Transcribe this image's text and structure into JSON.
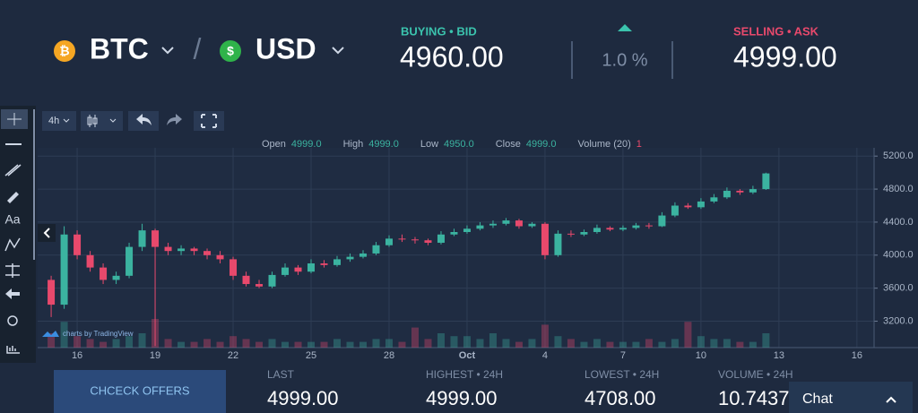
{
  "header": {
    "base_symbol": "₿",
    "base": "BTC",
    "quote_symbol": "$",
    "quote": "USD",
    "separator": "/",
    "bid_label": "BUYING • BID",
    "bid": "4960.00",
    "change": "1.0 %",
    "ask_label": "SELLING • ASK",
    "ask": "4999.00"
  },
  "left_toolbar": {
    "text_tool": "Aa"
  },
  "chart_toolbar": {
    "interval": "4h"
  },
  "ohlc_legend": {
    "open_label": "Open",
    "open": "4999.0",
    "high_label": "High",
    "high": "4999.0",
    "low_label": "Low",
    "low": "4950.0",
    "close_label": "Close",
    "close": "4999.0",
    "volume_label": "Volume (20)",
    "volume": "1"
  },
  "chart_data": {
    "type": "candlestick",
    "watermark": "charts by TradingView",
    "up_color": "#3bb3a0",
    "down_color": "#e8496c",
    "grid": true,
    "x": [
      -1,
      -0.5,
      0,
      0.5,
      1,
      1.5,
      2,
      2.5,
      3,
      3.5,
      4,
      4.5,
      5,
      5.5,
      6,
      6.5,
      7,
      7.5,
      8,
      8.5,
      9,
      9.5,
      10,
      10.5,
      11,
      11.5,
      12,
      12.5,
      13,
      13.5,
      14,
      14.5,
      15,
      15.5,
      16,
      16.5,
      17,
      17.5,
      18,
      18.5,
      19,
      19.5,
      20,
      20.5,
      21,
      21.5,
      22,
      22.5,
      23,
      23.5,
      24,
      24.5,
      25,
      25.5,
      26,
      26.5
    ],
    "open": [
      3700,
      3400,
      4250,
      4000,
      3850,
      3700,
      3750,
      4100,
      4300,
      4100,
      4050,
      4080,
      4050,
      4000,
      3950,
      3750,
      3650,
      3620,
      3760,
      3850,
      3800,
      3900,
      3880,
      3950,
      3980,
      4020,
      4120,
      4200,
      4190,
      4180,
      4150,
      4250,
      4280,
      4320,
      4360,
      4380,
      4420,
      4350,
      4380,
      4000,
      4260,
      4250,
      4280,
      4330,
      4310,
      4330,
      4360,
      4350,
      4480,
      4600,
      4580,
      4650,
      4700,
      4780,
      4760,
      4800
    ],
    "high": [
      3750,
      4350,
      4300,
      4050,
      3900,
      3800,
      4150,
      4380,
      4320,
      4150,
      4120,
      4100,
      4080,
      4050,
      3980,
      3800,
      3700,
      3800,
      3900,
      3880,
      3950,
      3940,
      3990,
      4020,
      4060,
      4160,
      4240,
      4250,
      4220,
      4200,
      4290,
      4320,
      4360,
      4400,
      4420,
      4450,
      4440,
      4400,
      4400,
      4300,
      4300,
      4310,
      4370,
      4350,
      4360,
      4390,
      4390,
      4520,
      4640,
      4630,
      4690,
      4740,
      4820,
      4800,
      4840,
      4999
    ],
    "low": [
      3250,
      3350,
      3950,
      3800,
      3650,
      3650,
      3720,
      4050,
      2900,
      4000,
      4000,
      4000,
      3950,
      3900,
      3700,
      3620,
      3600,
      3600,
      3740,
      3760,
      3780,
      3850,
      3860,
      3920,
      3960,
      4000,
      4100,
      4160,
      4140,
      4120,
      4130,
      4230,
      4260,
      4300,
      4330,
      4360,
      4320,
      4330,
      3950,
      3980,
      4220,
      4230,
      4260,
      4290,
      4290,
      4310,
      4320,
      4340,
      4460,
      4560,
      4560,
      4630,
      4680,
      4730,
      4740,
      4790
    ],
    "close": [
      3400,
      4250,
      4000,
      3850,
      3700,
      3750,
      4100,
      4300,
      4100,
      4050,
      4080,
      4050,
      4000,
      3950,
      3750,
      3650,
      3620,
      3760,
      3850,
      3800,
      3900,
      3880,
      3950,
      3980,
      4020,
      4120,
      4200,
      4190,
      4180,
      4150,
      4250,
      4280,
      4320,
      4360,
      4380,
      4420,
      4350,
      4380,
      4000,
      4260,
      4250,
      4280,
      4330,
      4310,
      4330,
      4360,
      4350,
      4480,
      4600,
      4580,
      4650,
      4700,
      4780,
      4760,
      4800,
      4990
    ],
    "volume": [
      5,
      9,
      4,
      3,
      2,
      3,
      4,
      5,
      10,
      3,
      2,
      2,
      3,
      2,
      4,
      3,
      2,
      3,
      2,
      2,
      2,
      2,
      3,
      2,
      2,
      3,
      3,
      2,
      7,
      3,
      5,
      4,
      4,
      3,
      5,
      3,
      2,
      3,
      8,
      4,
      3,
      2,
      3,
      2,
      2,
      2,
      3,
      2,
      3,
      9,
      4,
      3,
      3,
      2,
      2,
      5
    ],
    "xlim": [
      -1.52,
      30.66
    ],
    "ylim": [
      2880,
      5300
    ],
    "xticks": [
      {
        "value": 0,
        "label": "16"
      },
      {
        "value": 3,
        "label": "19"
      },
      {
        "value": 6,
        "label": "22"
      },
      {
        "value": 9,
        "label": "25"
      },
      {
        "value": 12,
        "label": "28"
      },
      {
        "value": 15,
        "label": "Oct"
      },
      {
        "value": 18,
        "label": "4"
      },
      {
        "value": 21,
        "label": "7"
      },
      {
        "value": 24,
        "label": "10"
      },
      {
        "value": 27,
        "label": "13"
      },
      {
        "value": 30,
        "label": "16"
      }
    ],
    "yticks": [
      {
        "value": 3200,
        "label": "3200.0"
      },
      {
        "value": 3600,
        "label": "3600.0"
      },
      {
        "value": 4000,
        "label": "4000.0"
      },
      {
        "value": 4400,
        "label": "4400.0"
      },
      {
        "value": 4800,
        "label": "4800.0"
      },
      {
        "value": 5200,
        "label": "5200.0"
      }
    ]
  },
  "footer": {
    "button": "CHCECK OFFERS",
    "last_label": "LAST",
    "last": "4999.00",
    "high_label": "HIGHEST • 24H",
    "high": "4999.00",
    "low_label": "LOWEST • 24H",
    "low": "4708.00",
    "volume_label": "VOLUME • 24H",
    "volume": "10.7437",
    "chat": "Chat"
  }
}
